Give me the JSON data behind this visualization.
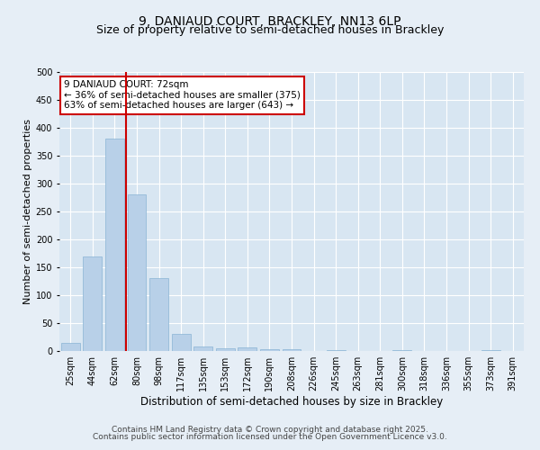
{
  "title": "9, DANIAUD COURT, BRACKLEY, NN13 6LP",
  "subtitle": "Size of property relative to semi-detached houses in Brackley",
  "xlabel": "Distribution of semi-detached houses by size in Brackley",
  "ylabel": "Number of semi-detached properties",
  "bin_labels": [
    "25sqm",
    "44sqm",
    "62sqm",
    "80sqm",
    "98sqm",
    "117sqm",
    "135sqm",
    "153sqm",
    "172sqm",
    "190sqm",
    "208sqm",
    "226sqm",
    "245sqm",
    "263sqm",
    "281sqm",
    "300sqm",
    "318sqm",
    "336sqm",
    "355sqm",
    "373sqm",
    "391sqm"
  ],
  "bar_values": [
    15,
    170,
    380,
    280,
    130,
    30,
    8,
    5,
    6,
    4,
    3,
    0,
    1,
    0,
    0,
    1,
    0,
    0,
    0,
    1,
    0
  ],
  "bar_color": "#b8d0e8",
  "bar_edge_color": "#8ab4d4",
  "vline_color": "#cc0000",
  "annotation_line1": "9 DANIAUD COURT: 72sqm",
  "annotation_line2": "← 36% of semi-detached houses are smaller (375)",
  "annotation_line3": "63% of semi-detached houses are larger (643) →",
  "annotation_box_color": "#ffffff",
  "annotation_box_edge": "#cc0000",
  "ylim": [
    0,
    500
  ],
  "yticks": [
    0,
    50,
    100,
    150,
    200,
    250,
    300,
    350,
    400,
    450,
    500
  ],
  "bg_color": "#e6eef6",
  "plot_bg_color": "#d8e6f2",
  "grid_color": "#ffffff",
  "footer_line1": "Contains HM Land Registry data © Crown copyright and database right 2025.",
  "footer_line2": "Contains public sector information licensed under the Open Government Licence v3.0.",
  "title_fontsize": 10,
  "subtitle_fontsize": 9,
  "xlabel_fontsize": 8.5,
  "ylabel_fontsize": 8,
  "tick_fontsize": 7,
  "annotation_fontsize": 7.5,
  "footer_fontsize": 6.5
}
